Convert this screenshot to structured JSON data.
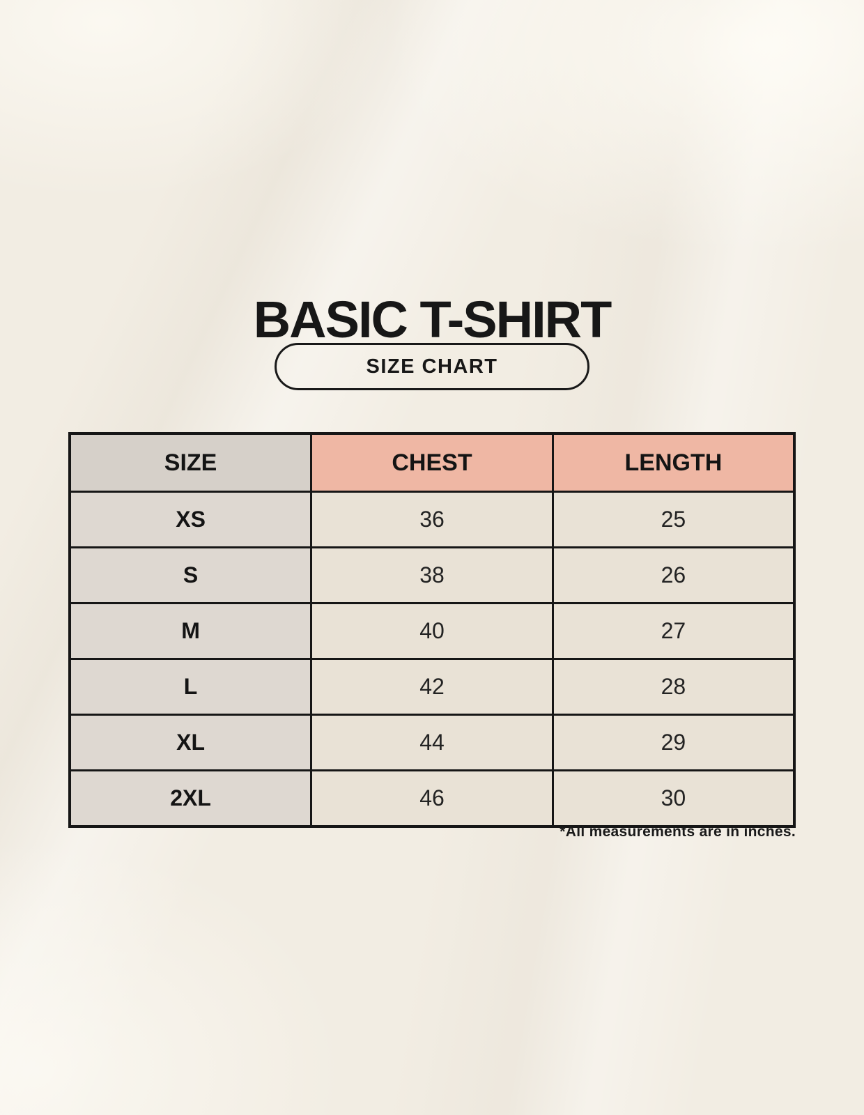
{
  "page": {
    "title": "BASIC T-SHIRT",
    "badge_label": "SIZE CHART",
    "footnote": "*All measurements are in inches."
  },
  "colors": {
    "background": "#f2ede3",
    "header_accent": "#efb7a4",
    "header_size_gray": "#d6d0c9",
    "size_column_gray": "#ded8d1",
    "value_cell_cream": "#e9e2d6",
    "border_ink": "#161616"
  },
  "chart_data": {
    "type": "table",
    "title": "BASIC T-SHIRT",
    "subtitle": "SIZE CHART",
    "columns": [
      "SIZE",
      "CHEST",
      "LENGTH"
    ],
    "rows": [
      [
        "XS",
        "36",
        "25"
      ],
      [
        "S",
        "38",
        "26"
      ],
      [
        "M",
        "40",
        "27"
      ],
      [
        "L",
        "42",
        "28"
      ],
      [
        "XL",
        "44",
        "29"
      ],
      [
        "2XL",
        "46",
        "30"
      ]
    ],
    "units_note": "*All measurements are in inches."
  }
}
